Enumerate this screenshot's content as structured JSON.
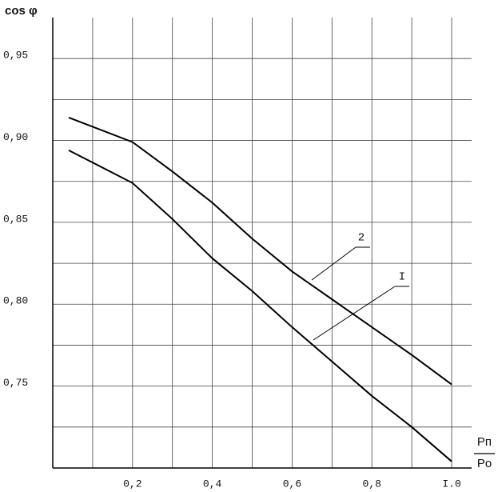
{
  "chart_data": {
    "type": "line",
    "y_label": "cos φ",
    "x_label_num": "Pп",
    "x_label_den": "Po",
    "xlim": [
      0.0,
      1.05
    ],
    "ylim": [
      0.7,
      0.975
    ],
    "xticks": [
      {
        "value": 0.2,
        "label": "0,2"
      },
      {
        "value": 0.4,
        "label": "0,4"
      },
      {
        "value": 0.6,
        "label": "0,6"
      },
      {
        "value": 0.8,
        "label": "0,8"
      },
      {
        "value": 1.0,
        "label": "I.0"
      }
    ],
    "yticks": [
      {
        "value": 0.75,
        "label": "0,75"
      },
      {
        "value": 0.8,
        "label": "0,80"
      },
      {
        "value": 0.85,
        "label": "0,85"
      },
      {
        "value": 0.9,
        "label": "0,90"
      },
      {
        "value": 0.95,
        "label": "0,95"
      }
    ],
    "x_grid": [
      0.1,
      0.2,
      0.3,
      0.4,
      0.5,
      0.6,
      0.7,
      0.8,
      0.9,
      1.0
    ],
    "y_grid": [
      0.725,
      0.75,
      0.775,
      0.8,
      0.825,
      0.85,
      0.875,
      0.9,
      0.925,
      0.95
    ],
    "grid": true,
    "series": [
      {
        "name": "2",
        "color": "#000000",
        "x": [
          0.04,
          0.2,
          0.3,
          0.4,
          0.5,
          0.6,
          0.7,
          0.8,
          0.9,
          1.0
        ],
        "values": [
          0.914,
          0.899,
          0.881,
          0.862,
          0.84,
          0.82,
          0.803,
          0.786,
          0.769,
          0.751
        ]
      },
      {
        "name": "I",
        "color": "#000000",
        "x": [
          0.04,
          0.2,
          0.3,
          0.4,
          0.5,
          0.6,
          0.7,
          0.8,
          0.9,
          1.0
        ],
        "values": [
          0.894,
          0.874,
          0.852,
          0.828,
          0.808,
          0.786,
          0.765,
          0.744,
          0.725,
          0.704
        ]
      }
    ]
  }
}
